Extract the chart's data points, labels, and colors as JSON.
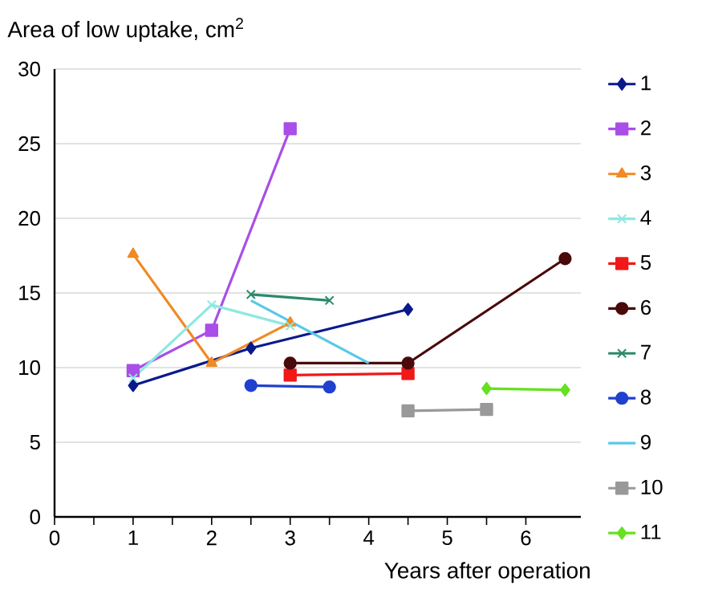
{
  "chart_data": {
    "type": "line",
    "title": "Area of low uptake, cm$^{2}$",
    "xlabel": "Years after operation",
    "xlim": [
      0,
      6.7
    ],
    "xticks": [
      0,
      1,
      2,
      3,
      4,
      5,
      6
    ],
    "ylim": [
      0,
      30
    ],
    "yticks": [
      0,
      5,
      10,
      15,
      20,
      25,
      30
    ],
    "grid": "y",
    "legend": "right",
    "series": [
      {
        "name": "1",
        "color": "#0a1a8c",
        "marker": "diamond",
        "x": [
          1,
          2.5,
          4.5
        ],
        "values": [
          8.8,
          11.3,
          13.9
        ]
      },
      {
        "name": "2",
        "color": "#a94ee8",
        "marker": "square",
        "x": [
          1,
          2,
          3
        ],
        "values": [
          9.8,
          12.5,
          26
        ]
      },
      {
        "name": "3",
        "color": "#f08a24",
        "marker": "triangle",
        "x": [
          1,
          2,
          3
        ],
        "values": [
          17.6,
          10.3,
          13
        ]
      },
      {
        "name": "4",
        "color": "#8fe8e0",
        "marker": "cross",
        "x": [
          1,
          2,
          3
        ],
        "values": [
          9.3,
          14.2,
          12.8
        ]
      },
      {
        "name": "5",
        "color": "#f01818",
        "marker": "square",
        "x": [
          3,
          4.5
        ],
        "values": [
          9.5,
          9.6
        ]
      },
      {
        "name": "6",
        "color": "#4a0a0a",
        "marker": "circle",
        "x": [
          3,
          4.5,
          6.5
        ],
        "values": [
          10.3,
          10.3,
          17.3
        ]
      },
      {
        "name": "7",
        "color": "#2a8a6a",
        "marker": "cross",
        "x": [
          2.5,
          3.5
        ],
        "values": [
          14.9,
          14.5
        ]
      },
      {
        "name": "8",
        "color": "#2040d0",
        "marker": "circle",
        "x": [
          2.5,
          3.5
        ],
        "values": [
          8.8,
          8.7
        ]
      },
      {
        "name": "9",
        "color": "#5ac8e8",
        "marker": "none",
        "x": [
          2.5,
          4
        ],
        "values": [
          14.5,
          10.3
        ]
      },
      {
        "name": "10",
        "color": "#999999",
        "marker": "square",
        "x": [
          4.5,
          5.5
        ],
        "values": [
          7.1,
          7.2
        ]
      },
      {
        "name": "11",
        "color": "#66e020",
        "marker": "diamond",
        "x": [
          5.5,
          6.5
        ],
        "values": [
          8.6,
          8.5
        ]
      }
    ]
  }
}
